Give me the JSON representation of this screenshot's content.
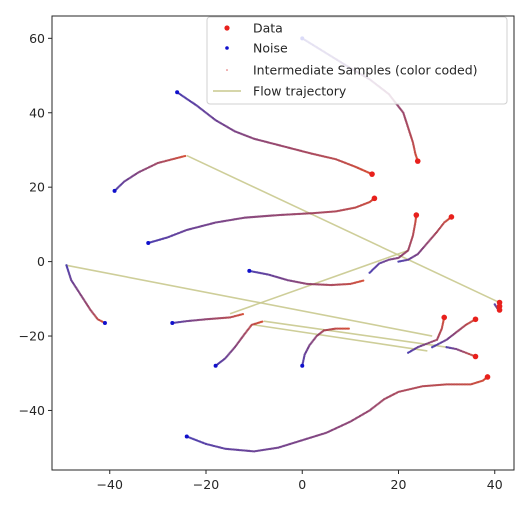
{
  "chart_data": {
    "type": "scatter",
    "title": "",
    "xlabel": "",
    "ylabel": "",
    "xlim": [
      -52,
      44
    ],
    "ylim": [
      -56,
      66
    ],
    "xticks": [
      -40,
      -20,
      0,
      20,
      40
    ],
    "yticks": [
      -40,
      -20,
      0,
      20,
      40,
      60
    ],
    "legend_position": "top-right",
    "colors": {
      "data": "#e8201c",
      "noise": "#1010cc",
      "flow": "#c9c98e",
      "sample_start": "#3b2ba6",
      "sample_end": "#d23a1e"
    },
    "series": [
      {
        "name": "Data",
        "marker": "circle",
        "color": "#e8201c"
      },
      {
        "name": "Noise",
        "marker": "circle",
        "color": "#1010cc"
      },
      {
        "name": "Intermediate Samples (color coded)",
        "marker": "dot",
        "color": "#e06060"
      },
      {
        "name": "Flow trajectory",
        "marker": "line",
        "color": "#c9c98e"
      }
    ],
    "trajectories": [
      {
        "points": [
          [
            0,
            60
          ],
          [
            5,
            56
          ],
          [
            10,
            52
          ],
          [
            14,
            49
          ],
          [
            18,
            45
          ],
          [
            21,
            40
          ],
          [
            22,
            36
          ],
          [
            23,
            32
          ],
          [
            23.5,
            29
          ],
          [
            24,
            27
          ]
        ]
      },
      {
        "points": [
          [
            -26,
            45.5
          ],
          [
            -22,
            42
          ],
          [
            -18,
            38
          ],
          [
            -14,
            35
          ],
          [
            -10,
            33
          ],
          [
            -4,
            31
          ],
          [
            2,
            29
          ],
          [
            7,
            27.5
          ],
          [
            11,
            25.5
          ],
          [
            14.5,
            23.5
          ]
        ]
      },
      {
        "points": [
          [
            -39,
            19
          ],
          [
            -37,
            21.5
          ],
          [
            -34,
            24
          ],
          [
            -30,
            26.5
          ],
          [
            -27,
            27.5
          ],
          [
            -24,
            28.5
          ]
        ]
      },
      {
        "points": [
          [
            -32,
            5
          ],
          [
            -28,
            6.5
          ],
          [
            -24,
            8.5
          ],
          [
            -18,
            10.5
          ],
          [
            -12,
            11.8
          ],
          [
            -5,
            12.5
          ],
          [
            2,
            13
          ],
          [
            7,
            13.5
          ],
          [
            11,
            14.5
          ],
          [
            14,
            16
          ],
          [
            15,
            17
          ]
        ]
      },
      {
        "points": [
          [
            -11,
            -2.5
          ],
          [
            -7,
            -3.5
          ],
          [
            -3,
            -5
          ],
          [
            1,
            -6
          ],
          [
            6,
            -6.3
          ],
          [
            10,
            -6
          ],
          [
            13,
            -5
          ]
        ]
      },
      {
        "points": [
          [
            14,
            -3
          ],
          [
            16,
            -0.5
          ],
          [
            18,
            0.5
          ],
          [
            20,
            1
          ],
          [
            22,
            3
          ],
          [
            23,
            7
          ],
          [
            23.5,
            10.5
          ],
          [
            23.7,
            12.5
          ]
        ]
      },
      {
        "points": [
          [
            20,
            0
          ],
          [
            22,
            0.5
          ],
          [
            24,
            2
          ],
          [
            26,
            5
          ],
          [
            28,
            8
          ],
          [
            29.5,
            10.5
          ],
          [
            31,
            12
          ]
        ]
      },
      {
        "points": [
          [
            -49,
            -1
          ],
          [
            -48,
            -5
          ],
          [
            -46,
            -9
          ],
          [
            -44,
            -13
          ],
          [
            -42.5,
            -15.5
          ],
          [
            -41,
            -16.5
          ]
        ]
      },
      {
        "points": [
          [
            -27,
            -16.5
          ],
          [
            -24,
            -16
          ],
          [
            -20,
            -15.5
          ],
          [
            -15,
            -15
          ],
          [
            -12,
            -14
          ]
        ]
      },
      {
        "points": [
          [
            -18,
            -28
          ],
          [
            -16,
            -26
          ],
          [
            -14,
            -23
          ],
          [
            -12,
            -19.5
          ],
          [
            -10.5,
            -17
          ],
          [
            -8,
            -16
          ]
        ]
      },
      {
        "points": [
          [
            0,
            -28
          ],
          [
            0.5,
            -25
          ],
          [
            1.5,
            -22.5
          ],
          [
            3,
            -20
          ],
          [
            4.5,
            -18.5
          ],
          [
            7,
            -18
          ],
          [
            10,
            -18
          ]
        ]
      },
      {
        "points": [
          [
            22,
            -24.5
          ],
          [
            24,
            -23
          ],
          [
            26,
            -22
          ],
          [
            28,
            -21
          ],
          [
            29,
            -18
          ],
          [
            29.5,
            -15
          ]
        ]
      },
      {
        "points": [
          [
            27,
            -23
          ],
          [
            30,
            -21
          ],
          [
            32,
            -19
          ],
          [
            34,
            -17
          ],
          [
            36,
            -15.5
          ]
        ]
      },
      {
        "points": [
          [
            30,
            -23
          ],
          [
            32,
            -23.5
          ],
          [
            34,
            -24.5
          ],
          [
            36,
            -25.5
          ]
        ]
      },
      {
        "points": [
          [
            -24,
            -47
          ],
          [
            -20,
            -49
          ],
          [
            -16,
            -50.3
          ],
          [
            -10,
            -51
          ],
          [
            -5,
            -50
          ],
          [
            0,
            -48
          ],
          [
            5,
            -46
          ],
          [
            10,
            -43
          ],
          [
            14,
            -40
          ],
          [
            17,
            -37
          ],
          [
            20,
            -35
          ],
          [
            25,
            -33.5
          ],
          [
            30,
            -33
          ],
          [
            35,
            -33
          ],
          [
            37.5,
            -32
          ],
          [
            38.5,
            -31
          ]
        ]
      },
      {
        "points": [
          [
            40,
            -11.5
          ],
          [
            40.5,
            -12.5
          ],
          [
            41,
            -13
          ]
        ]
      }
    ],
    "data_points": [
      [
        24,
        27
      ],
      [
        14.5,
        23.5
      ],
      [
        15,
        17
      ],
      [
        23.7,
        12.5
      ],
      [
        31,
        12
      ],
      [
        29.5,
        -15
      ],
      [
        36,
        -15.5
      ],
      [
        36,
        -25.5
      ],
      [
        38.5,
        -31
      ],
      [
        41,
        -11
      ],
      [
        41,
        -12
      ],
      [
        41,
        -13
      ]
    ],
    "noise_points": [
      [
        0,
        60
      ],
      [
        -26,
        45.5
      ],
      [
        -39,
        19
      ],
      [
        -32,
        5
      ],
      [
        -11,
        -2.5
      ],
      [
        -41,
        -16.5
      ],
      [
        -27,
        -16.5
      ],
      [
        -18,
        -28
      ],
      [
        0,
        -28
      ],
      [
        -24,
        -47
      ]
    ],
    "flow_lines": [
      [
        [
          -24,
          28.5
        ],
        [
          41,
          -11
        ]
      ],
      [
        [
          -49,
          -1
        ],
        [
          27,
          -20
        ]
      ],
      [
        [
          -8,
          -16
        ],
        [
          30,
          -23
        ]
      ],
      [
        [
          -15,
          -14
        ],
        [
          22,
          3
        ]
      ],
      [
        [
          -10,
          -17
        ],
        [
          26,
          -24
        ]
      ]
    ]
  }
}
